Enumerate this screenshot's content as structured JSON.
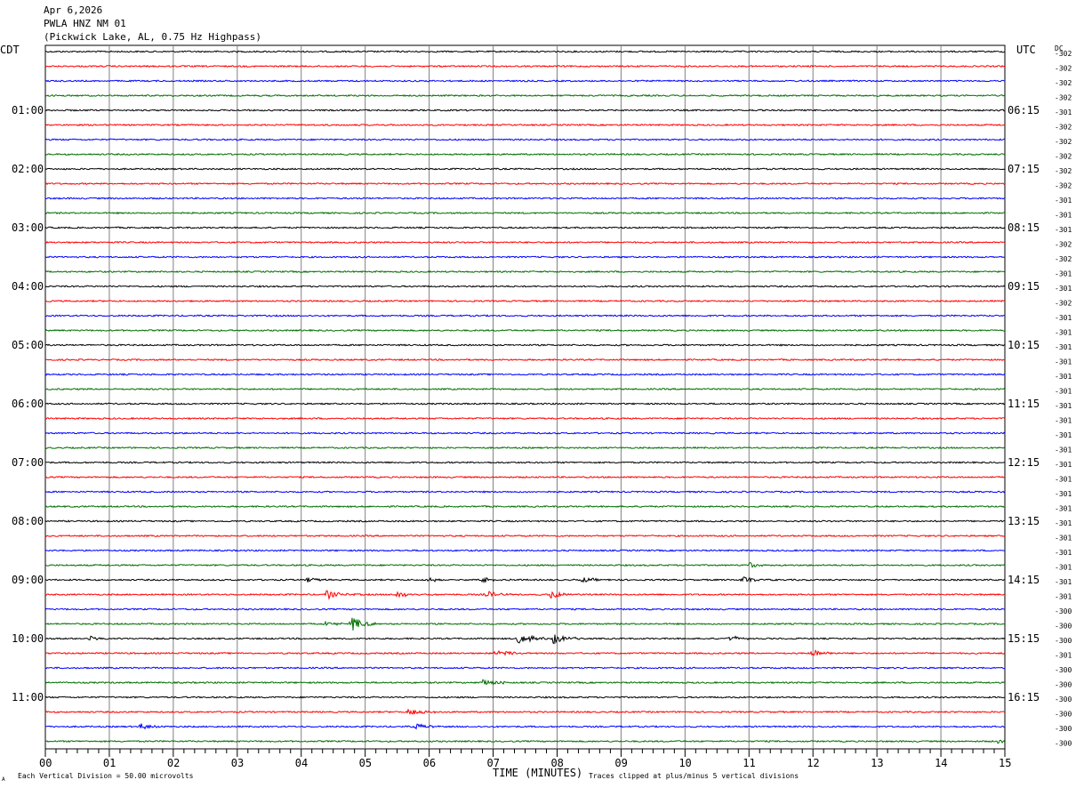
{
  "header": {
    "date": "Apr 6,2026",
    "station": "PWLA HNZ NM 01",
    "description": "(Pickwick Lake, AL, 0.75 Hz Highpass)"
  },
  "chart_data": {
    "type": "line",
    "title": "PWLA HNZ NM 01",
    "left_axis_label": "CDT",
    "right_axis_label": "UTC",
    "dc_label": "DC",
    "xlabel": "TIME (MINUTES)",
    "x_ticks": [
      "00",
      "01",
      "02",
      "03",
      "04",
      "05",
      "06",
      "07",
      "08",
      "09",
      "10",
      "11",
      "12",
      "13",
      "14",
      "15"
    ],
    "xlim": [
      0,
      15
    ],
    "trace_colors": [
      "#000000",
      "#ff0000",
      "#0000ff",
      "#007000"
    ],
    "row_count": 48,
    "cdt_hour_labels": [
      "01:00",
      "02:00",
      "03:00",
      "04:00",
      "05:00",
      "06:00",
      "07:00",
      "08:00",
      "09:00",
      "10:00",
      "11:00"
    ],
    "utc_hour_labels": [
      "06:15",
      "07:15",
      "08:15",
      "09:15",
      "10:15",
      "11:15",
      "12:15",
      "13:15",
      "14:15",
      "15:15",
      "16:15"
    ],
    "dc_offsets": [
      "-302",
      "-302",
      "-302",
      "-302",
      "-301",
      "-302",
      "-302",
      "-302",
      "-302",
      "-302",
      "-301",
      "-301",
      "-301",
      "-302",
      "-302",
      "-301",
      "-301",
      "-302",
      "-301",
      "-301",
      "-301",
      "-301",
      "-301",
      "-301",
      "-301",
      "-301",
      "-301",
      "-301",
      "-301",
      "-301",
      "-301",
      "-301",
      "-301",
      "-301",
      "-301",
      "-301",
      "-301",
      "-301",
      "-300",
      "-300",
      "-300",
      "-301",
      "-300",
      "-300",
      "-300",
      "-300",
      "-300",
      "-300"
    ],
    "events": [
      {
        "row": 36,
        "minute": 4.1,
        "amp": 3
      },
      {
        "row": 36,
        "minute": 6.0,
        "amp": 2.5
      },
      {
        "row": 36,
        "minute": 6.85,
        "amp": 4
      },
      {
        "row": 36,
        "minute": 8.4,
        "amp": 3
      },
      {
        "row": 36,
        "minute": 10.9,
        "amp": 4
      },
      {
        "row": 37,
        "minute": 4.4,
        "amp": 5
      },
      {
        "row": 37,
        "minute": 5.5,
        "amp": 4
      },
      {
        "row": 37,
        "minute": 6.9,
        "amp": 4
      },
      {
        "row": 37,
        "minute": 7.9,
        "amp": 5
      },
      {
        "row": 39,
        "minute": 4.8,
        "amp": 9
      },
      {
        "row": 39,
        "minute": 4.4,
        "amp": 3
      },
      {
        "row": 40,
        "minute": 0.7,
        "amp": 3
      },
      {
        "row": 40,
        "minute": 7.4,
        "amp": 7
      },
      {
        "row": 40,
        "minute": 7.95,
        "amp": 6
      },
      {
        "row": 40,
        "minute": 10.7,
        "amp": 3
      },
      {
        "row": 41,
        "minute": 7.05,
        "amp": 4
      },
      {
        "row": 41,
        "minute": 12.0,
        "amp": 4
      },
      {
        "row": 43,
        "minute": 6.85,
        "amp": 5
      },
      {
        "row": 45,
        "minute": 5.7,
        "amp": 6
      },
      {
        "row": 46,
        "minute": 5.8,
        "amp": 4
      },
      {
        "row": 46,
        "minute": 1.5,
        "amp": 3
      },
      {
        "row": 47,
        "minute": 14.9,
        "amp": 3
      },
      {
        "row": 35,
        "minute": 11.0,
        "amp": 3
      }
    ]
  },
  "footer": {
    "vertical_division": "Each Vertical Division =   50.00 microvolts",
    "clip_note": "Traces clipped at plus/minus 5 vertical divisions",
    "corner_mark": "A"
  }
}
